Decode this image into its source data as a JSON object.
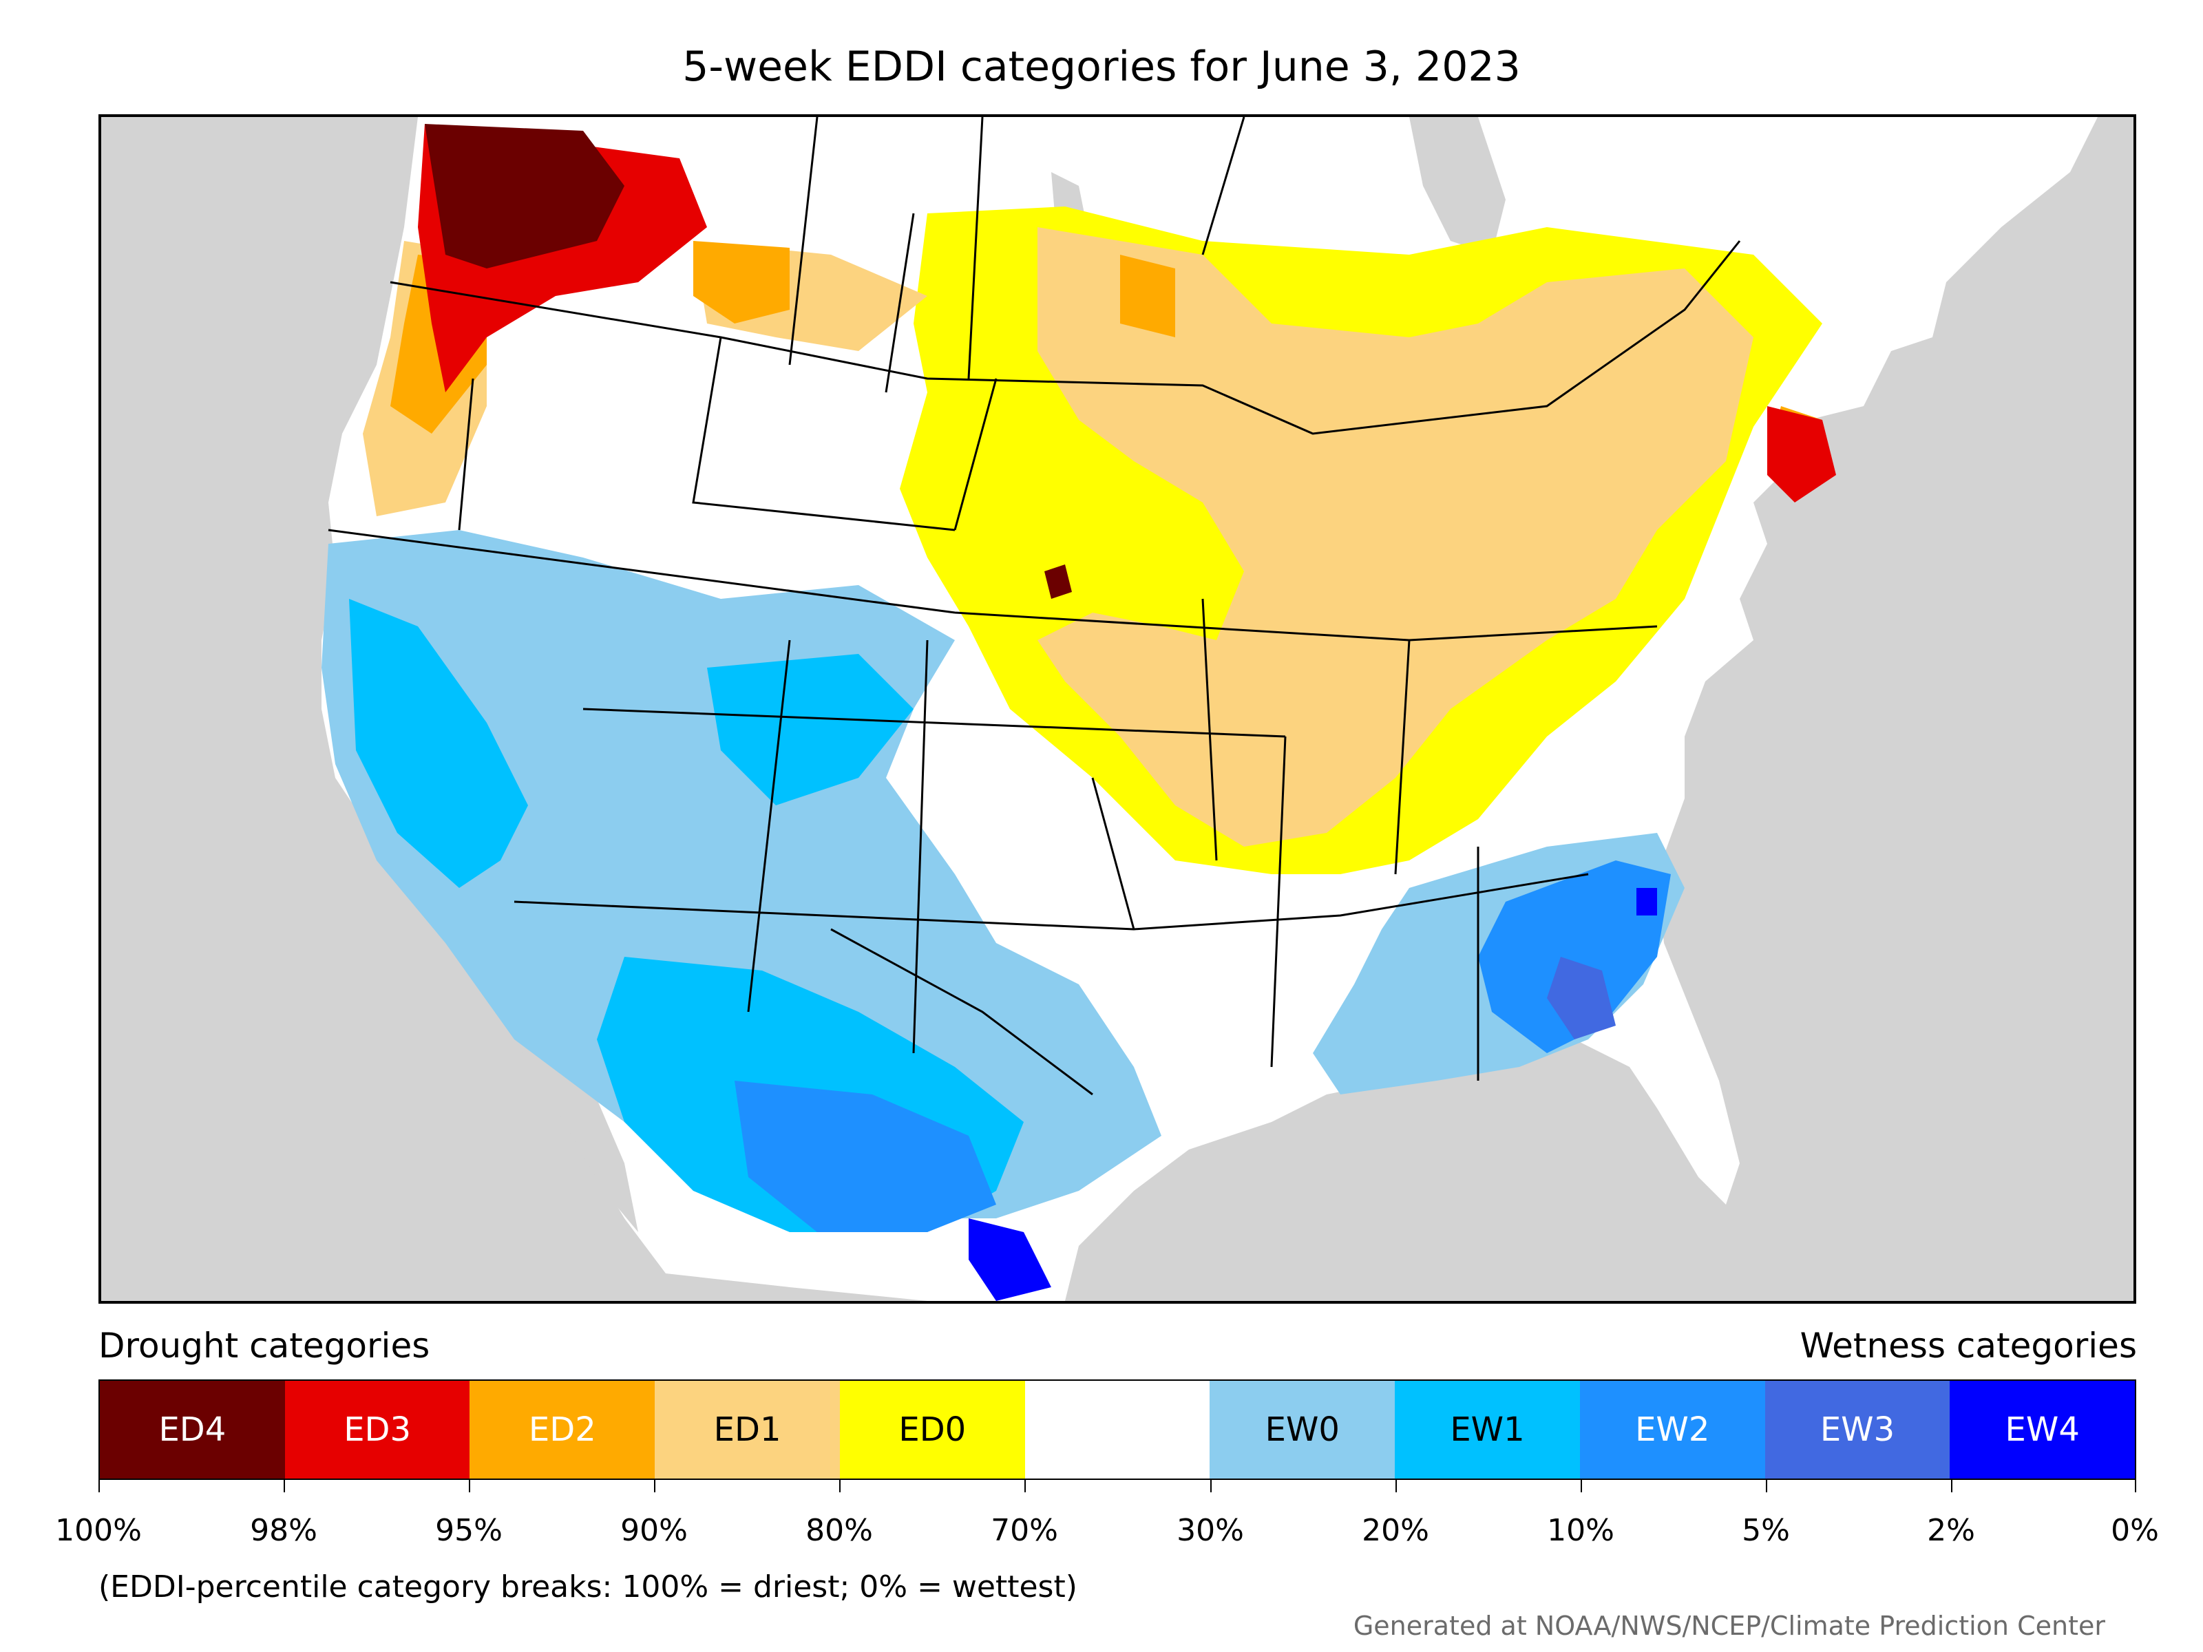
{
  "title": "5-week EDDI categories for June 3, 2023",
  "legend": {
    "left_heading": "Drought categories",
    "right_heading": "Wetness categories",
    "categories": [
      {
        "label": "ED4",
        "color": "#6b0000",
        "text_color": "#ffffff"
      },
      {
        "label": "ED3",
        "color": "#e60000",
        "text_color": "#ffffff"
      },
      {
        "label": "ED2",
        "color": "#ffaa00",
        "text_color": "#ffffff"
      },
      {
        "label": "ED1",
        "color": "#fcd37f",
        "text_color": "#000000"
      },
      {
        "label": "ED0",
        "color": "#ffff00",
        "text_color": "#000000"
      },
      {
        "label": "",
        "color": "#ffffff",
        "text_color": "#000000"
      },
      {
        "label": "EW0",
        "color": "#8ccdef",
        "text_color": "#000000"
      },
      {
        "label": "EW1",
        "color": "#00c1ff",
        "text_color": "#000000"
      },
      {
        "label": "EW2",
        "color": "#1e90ff",
        "text_color": "#ffffff"
      },
      {
        "label": "EW3",
        "color": "#4169e1",
        "text_color": "#ffffff"
      },
      {
        "label": "EW4",
        "color": "#0000ff",
        "text_color": "#ffffff"
      }
    ],
    "breaks": [
      "100%",
      "98%",
      "95%",
      "90%",
      "80%",
      "70%",
      "30%",
      "20%",
      "10%",
      "5%",
      "2%",
      "0%"
    ]
  },
  "note": "(EDDI-percentile category breaks: 100% = driest; 0% = wettest)",
  "credit": "Generated at NOAA/NWS/NCEP/Climate Prediction Center",
  "colors": {
    "ocean": "#d3d3d3",
    "land": "#ffffff",
    "border": "#000000"
  }
}
